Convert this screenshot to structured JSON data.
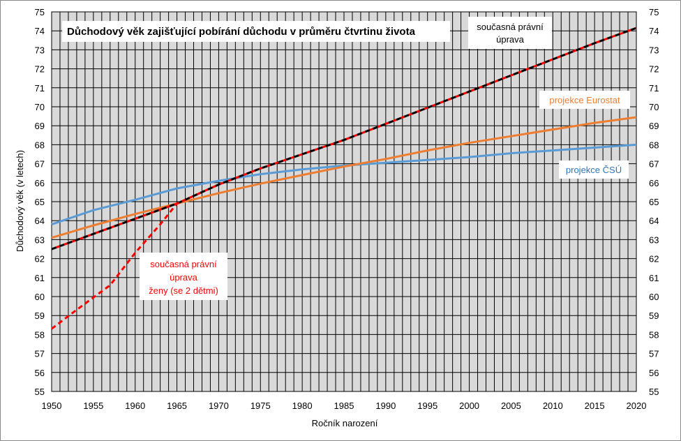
{
  "chart_data": {
    "type": "line",
    "title": "Důchodový věk zajišťující pobírání důchodu  v  průměru čtvrtinu života",
    "xlabel": "Ročník narození",
    "ylabel": "Důchodový věk (v letech)",
    "xlim": [
      1950,
      2020
    ],
    "ylim": [
      55,
      75
    ],
    "x_ticks": [
      1950,
      1955,
      1960,
      1965,
      1970,
      1975,
      1980,
      1985,
      1990,
      1995,
      2000,
      2005,
      2010,
      2015,
      2020
    ],
    "y_ticks": [
      55,
      56,
      57,
      58,
      59,
      60,
      61,
      62,
      63,
      64,
      65,
      66,
      67,
      68,
      69,
      70,
      71,
      72,
      73,
      74,
      75
    ],
    "grid": true,
    "secondary_y_axis": true,
    "plot_background": "#d9d9d9",
    "series": [
      {
        "name": "projekce ČSÚ",
        "color": "#5b9bd5",
        "style": "solid",
        "x": [
          1950,
          1955,
          1960,
          1965,
          1970,
          1975,
          1980,
          1985,
          1990,
          1995,
          2000,
          2005,
          2010,
          2015,
          2020
        ],
        "values": [
          63.8,
          64.55,
          65.1,
          65.7,
          66.1,
          66.45,
          66.7,
          66.9,
          67.05,
          67.2,
          67.35,
          67.55,
          67.7,
          67.85,
          68.0
        ]
      },
      {
        "name": "projekce Eurostat",
        "color": "#ed7d31",
        "style": "solid",
        "x": [
          1950,
          1955,
          1960,
          1965,
          1970,
          1975,
          1980,
          1985,
          1990,
          1995,
          2000,
          2005,
          2010,
          2015,
          2020
        ],
        "values": [
          63.1,
          63.75,
          64.35,
          64.9,
          65.45,
          65.95,
          66.4,
          66.85,
          67.25,
          67.7,
          68.1,
          68.45,
          68.8,
          69.15,
          69.45
        ]
      },
      {
        "name": "současná právní úprava",
        "color": "#000000",
        "style": "dashed",
        "x": [
          1950,
          1955,
          1960,
          1965,
          1970,
          1975,
          1980,
          1985,
          1990,
          1995,
          2000,
          2005,
          2010,
          2015,
          2020
        ],
        "values": [
          62.5,
          63.3,
          64.1,
          64.9,
          65.9,
          66.75,
          67.5,
          68.25,
          69.1,
          69.95,
          70.8,
          71.65,
          72.5,
          73.35,
          74.15
        ]
      },
      {
        "name": "současná právní úprava ženy (se 2 dětmi)",
        "color": "#ff0000",
        "style": "dashed",
        "x": [
          1950,
          1953,
          1957,
          1960,
          1963,
          1965,
          1966
        ],
        "values": [
          58.3,
          59.3,
          60.6,
          62.3,
          63.8,
          64.9,
          65.1
        ]
      }
    ],
    "annotations": [
      {
        "lines": [
          "současná právní",
          "úprava"
        ],
        "color": "#000000"
      },
      {
        "lines": [
          "projekce Eurostat"
        ],
        "color": "#ed7d31"
      },
      {
        "lines": [
          "projekce ČSÚ"
        ],
        "color": "#2e75b6"
      },
      {
        "lines": [
          "současná právní",
          "úprava",
          "ženy (se 2 dětmi)"
        ],
        "color": "#ff0000"
      }
    ]
  }
}
